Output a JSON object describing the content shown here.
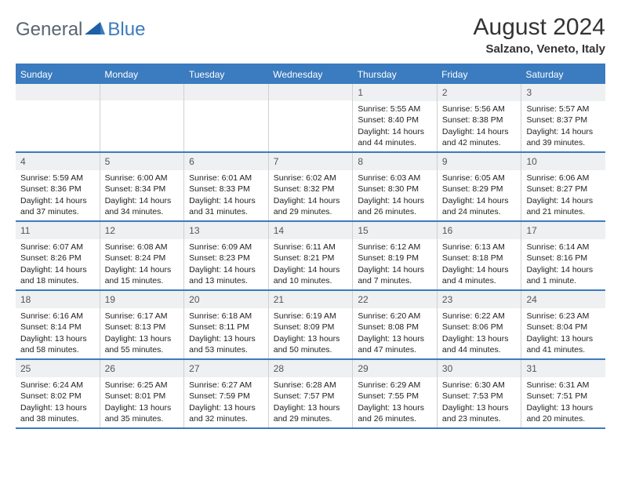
{
  "logo": {
    "text1": "General",
    "text2": "Blue"
  },
  "title": "August 2024",
  "location": "Salzano, Veneto, Italy",
  "colors": {
    "accent": "#3b7bbf",
    "header_band": "#eef0f2",
    "logo_gray": "#5a6570"
  },
  "weekdays": [
    "Sunday",
    "Monday",
    "Tuesday",
    "Wednesday",
    "Thursday",
    "Friday",
    "Saturday"
  ],
  "weeks": [
    [
      null,
      null,
      null,
      null,
      {
        "n": "1",
        "sr": "5:55 AM",
        "ss": "8:40 PM",
        "dl": "14 hours and 44 minutes."
      },
      {
        "n": "2",
        "sr": "5:56 AM",
        "ss": "8:38 PM",
        "dl": "14 hours and 42 minutes."
      },
      {
        "n": "3",
        "sr": "5:57 AM",
        "ss": "8:37 PM",
        "dl": "14 hours and 39 minutes."
      }
    ],
    [
      {
        "n": "4",
        "sr": "5:59 AM",
        "ss": "8:36 PM",
        "dl": "14 hours and 37 minutes."
      },
      {
        "n": "5",
        "sr": "6:00 AM",
        "ss": "8:34 PM",
        "dl": "14 hours and 34 minutes."
      },
      {
        "n": "6",
        "sr": "6:01 AM",
        "ss": "8:33 PM",
        "dl": "14 hours and 31 minutes."
      },
      {
        "n": "7",
        "sr": "6:02 AM",
        "ss": "8:32 PM",
        "dl": "14 hours and 29 minutes."
      },
      {
        "n": "8",
        "sr": "6:03 AM",
        "ss": "8:30 PM",
        "dl": "14 hours and 26 minutes."
      },
      {
        "n": "9",
        "sr": "6:05 AM",
        "ss": "8:29 PM",
        "dl": "14 hours and 24 minutes."
      },
      {
        "n": "10",
        "sr": "6:06 AM",
        "ss": "8:27 PM",
        "dl": "14 hours and 21 minutes."
      }
    ],
    [
      {
        "n": "11",
        "sr": "6:07 AM",
        "ss": "8:26 PM",
        "dl": "14 hours and 18 minutes."
      },
      {
        "n": "12",
        "sr": "6:08 AM",
        "ss": "8:24 PM",
        "dl": "14 hours and 15 minutes."
      },
      {
        "n": "13",
        "sr": "6:09 AM",
        "ss": "8:23 PM",
        "dl": "14 hours and 13 minutes."
      },
      {
        "n": "14",
        "sr": "6:11 AM",
        "ss": "8:21 PM",
        "dl": "14 hours and 10 minutes."
      },
      {
        "n": "15",
        "sr": "6:12 AM",
        "ss": "8:19 PM",
        "dl": "14 hours and 7 minutes."
      },
      {
        "n": "16",
        "sr": "6:13 AM",
        "ss": "8:18 PM",
        "dl": "14 hours and 4 minutes."
      },
      {
        "n": "17",
        "sr": "6:14 AM",
        "ss": "8:16 PM",
        "dl": "14 hours and 1 minute."
      }
    ],
    [
      {
        "n": "18",
        "sr": "6:16 AM",
        "ss": "8:14 PM",
        "dl": "13 hours and 58 minutes."
      },
      {
        "n": "19",
        "sr": "6:17 AM",
        "ss": "8:13 PM",
        "dl": "13 hours and 55 minutes."
      },
      {
        "n": "20",
        "sr": "6:18 AM",
        "ss": "8:11 PM",
        "dl": "13 hours and 53 minutes."
      },
      {
        "n": "21",
        "sr": "6:19 AM",
        "ss": "8:09 PM",
        "dl": "13 hours and 50 minutes."
      },
      {
        "n": "22",
        "sr": "6:20 AM",
        "ss": "8:08 PM",
        "dl": "13 hours and 47 minutes."
      },
      {
        "n": "23",
        "sr": "6:22 AM",
        "ss": "8:06 PM",
        "dl": "13 hours and 44 minutes."
      },
      {
        "n": "24",
        "sr": "6:23 AM",
        "ss": "8:04 PM",
        "dl": "13 hours and 41 minutes."
      }
    ],
    [
      {
        "n": "25",
        "sr": "6:24 AM",
        "ss": "8:02 PM",
        "dl": "13 hours and 38 minutes."
      },
      {
        "n": "26",
        "sr": "6:25 AM",
        "ss": "8:01 PM",
        "dl": "13 hours and 35 minutes."
      },
      {
        "n": "27",
        "sr": "6:27 AM",
        "ss": "7:59 PM",
        "dl": "13 hours and 32 minutes."
      },
      {
        "n": "28",
        "sr": "6:28 AM",
        "ss": "7:57 PM",
        "dl": "13 hours and 29 minutes."
      },
      {
        "n": "29",
        "sr": "6:29 AM",
        "ss": "7:55 PM",
        "dl": "13 hours and 26 minutes."
      },
      {
        "n": "30",
        "sr": "6:30 AM",
        "ss": "7:53 PM",
        "dl": "13 hours and 23 minutes."
      },
      {
        "n": "31",
        "sr": "6:31 AM",
        "ss": "7:51 PM",
        "dl": "13 hours and 20 minutes."
      }
    ]
  ],
  "labels": {
    "sunrise": "Sunrise:",
    "sunset": "Sunset:",
    "daylight": "Daylight:"
  }
}
